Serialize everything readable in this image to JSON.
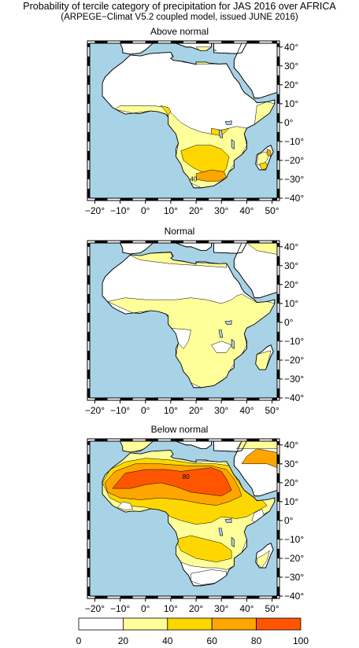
{
  "title": {
    "line1": "Probability of tercile category of precipitation for JAS 2016 over AFRICA",
    "line2": "(ARPEGE−Climat V5.2 coupled model, issued JUNE 2016)"
  },
  "map": {
    "x_ticks": [
      "−20°",
      "−10°",
      "0°",
      "10°",
      "20°",
      "30°",
      "40°",
      "50°"
    ],
    "y_ticks": [
      "40°",
      "30°",
      "20°",
      "10°",
      "0°",
      "−10°",
      "−20°",
      "−30°",
      "−40°"
    ],
    "x_range": [
      -22,
      52
    ],
    "y_range": [
      -40,
      42
    ],
    "ocean_color": "#a8d3e6",
    "land_color": "#ffffff"
  },
  "panels": [
    {
      "title": "Above normal",
      "contour_label": "40"
    },
    {
      "title": "Normal",
      "contour_label": ""
    },
    {
      "title": "Below normal",
      "contour_label": "80"
    }
  ],
  "colorbar": {
    "ticks": [
      "0",
      "20",
      "40",
      "60",
      "80",
      "100"
    ],
    "colors": [
      "#ffffff",
      "#ffff99",
      "#ffd700",
      "#ffa500",
      "#ff5500"
    ]
  }
}
